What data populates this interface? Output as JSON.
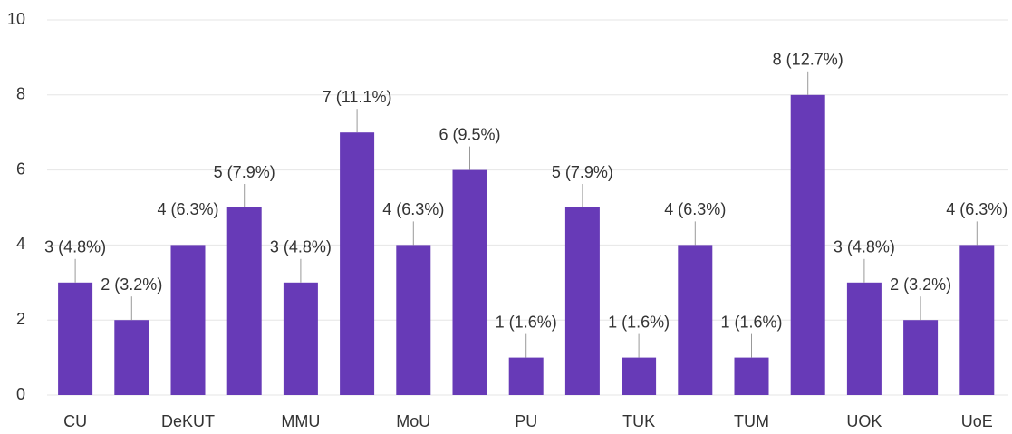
{
  "chart_data": {
    "type": "bar",
    "categories": [
      "CU",
      null,
      "DeKUT",
      null,
      "MMU",
      null,
      "MoU",
      null,
      "PU",
      null,
      "TUK",
      null,
      "TUM",
      null,
      "UOK",
      null,
      "UoE"
    ],
    "values": [
      3,
      2,
      4,
      5,
      3,
      7,
      4,
      6,
      1,
      5,
      1,
      4,
      1,
      8,
      3,
      2,
      4
    ],
    "value_labels": [
      "3 (4.8%)",
      "2 (3.2%)",
      "4 (6.3%)",
      "5 (7.9%)",
      "3 (4.8%)",
      "7 (11.1%)",
      "4 (6.3%)",
      "6 (9.5%)",
      "1 (1.6%)",
      "5 (7.9%)",
      "1 (1.6%)",
      "4 (6.3%)",
      "1 (1.6%)",
      "8 (12.7%)",
      "3 (4.8%)",
      "2 (3.2%)",
      "4 (6.3%)"
    ],
    "color": "#673ab7",
    "ylim": [
      0,
      10
    ],
    "yticks": [
      0,
      2,
      4,
      6,
      8,
      10
    ],
    "grid": true
  }
}
